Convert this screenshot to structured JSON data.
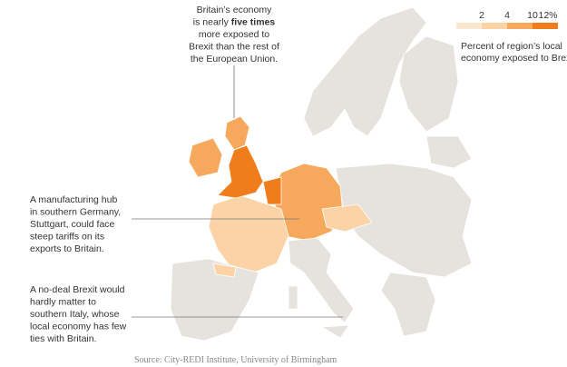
{
  "annotations": [
    {
      "lines": [
        [
          "Britain’s economy"
        ],
        [
          "is nearly ",
          "five times"
        ],
        [
          "more exposed to"
        ],
        [
          "Brexit than the rest of"
        ],
        [
          "the European Union."
        ]
      ]
    },
    {
      "lines": [
        [
          "A manufacturing hub"
        ],
        [
          "in southern Germany,"
        ],
        [
          "Stuttgart, could face"
        ],
        [
          "steep tariffs on its"
        ],
        [
          "exports to Britain."
        ]
      ]
    },
    {
      "lines": [
        [
          "A no-deal Brexit would"
        ],
        [
          "hardly matter to"
        ],
        [
          "southern Italy, whose"
        ],
        [
          "local economy has few"
        ],
        [
          "ties with Britain."
        ]
      ]
    }
  ],
  "legend": {
    "labels": [
      "2",
      "4",
      "10",
      "12%"
    ],
    "caption": [
      "Percent of region’s local",
      "economy exposed to Brex"
    ]
  },
  "source": "Source: City-REDI Institute, University of Birmingham"
}
